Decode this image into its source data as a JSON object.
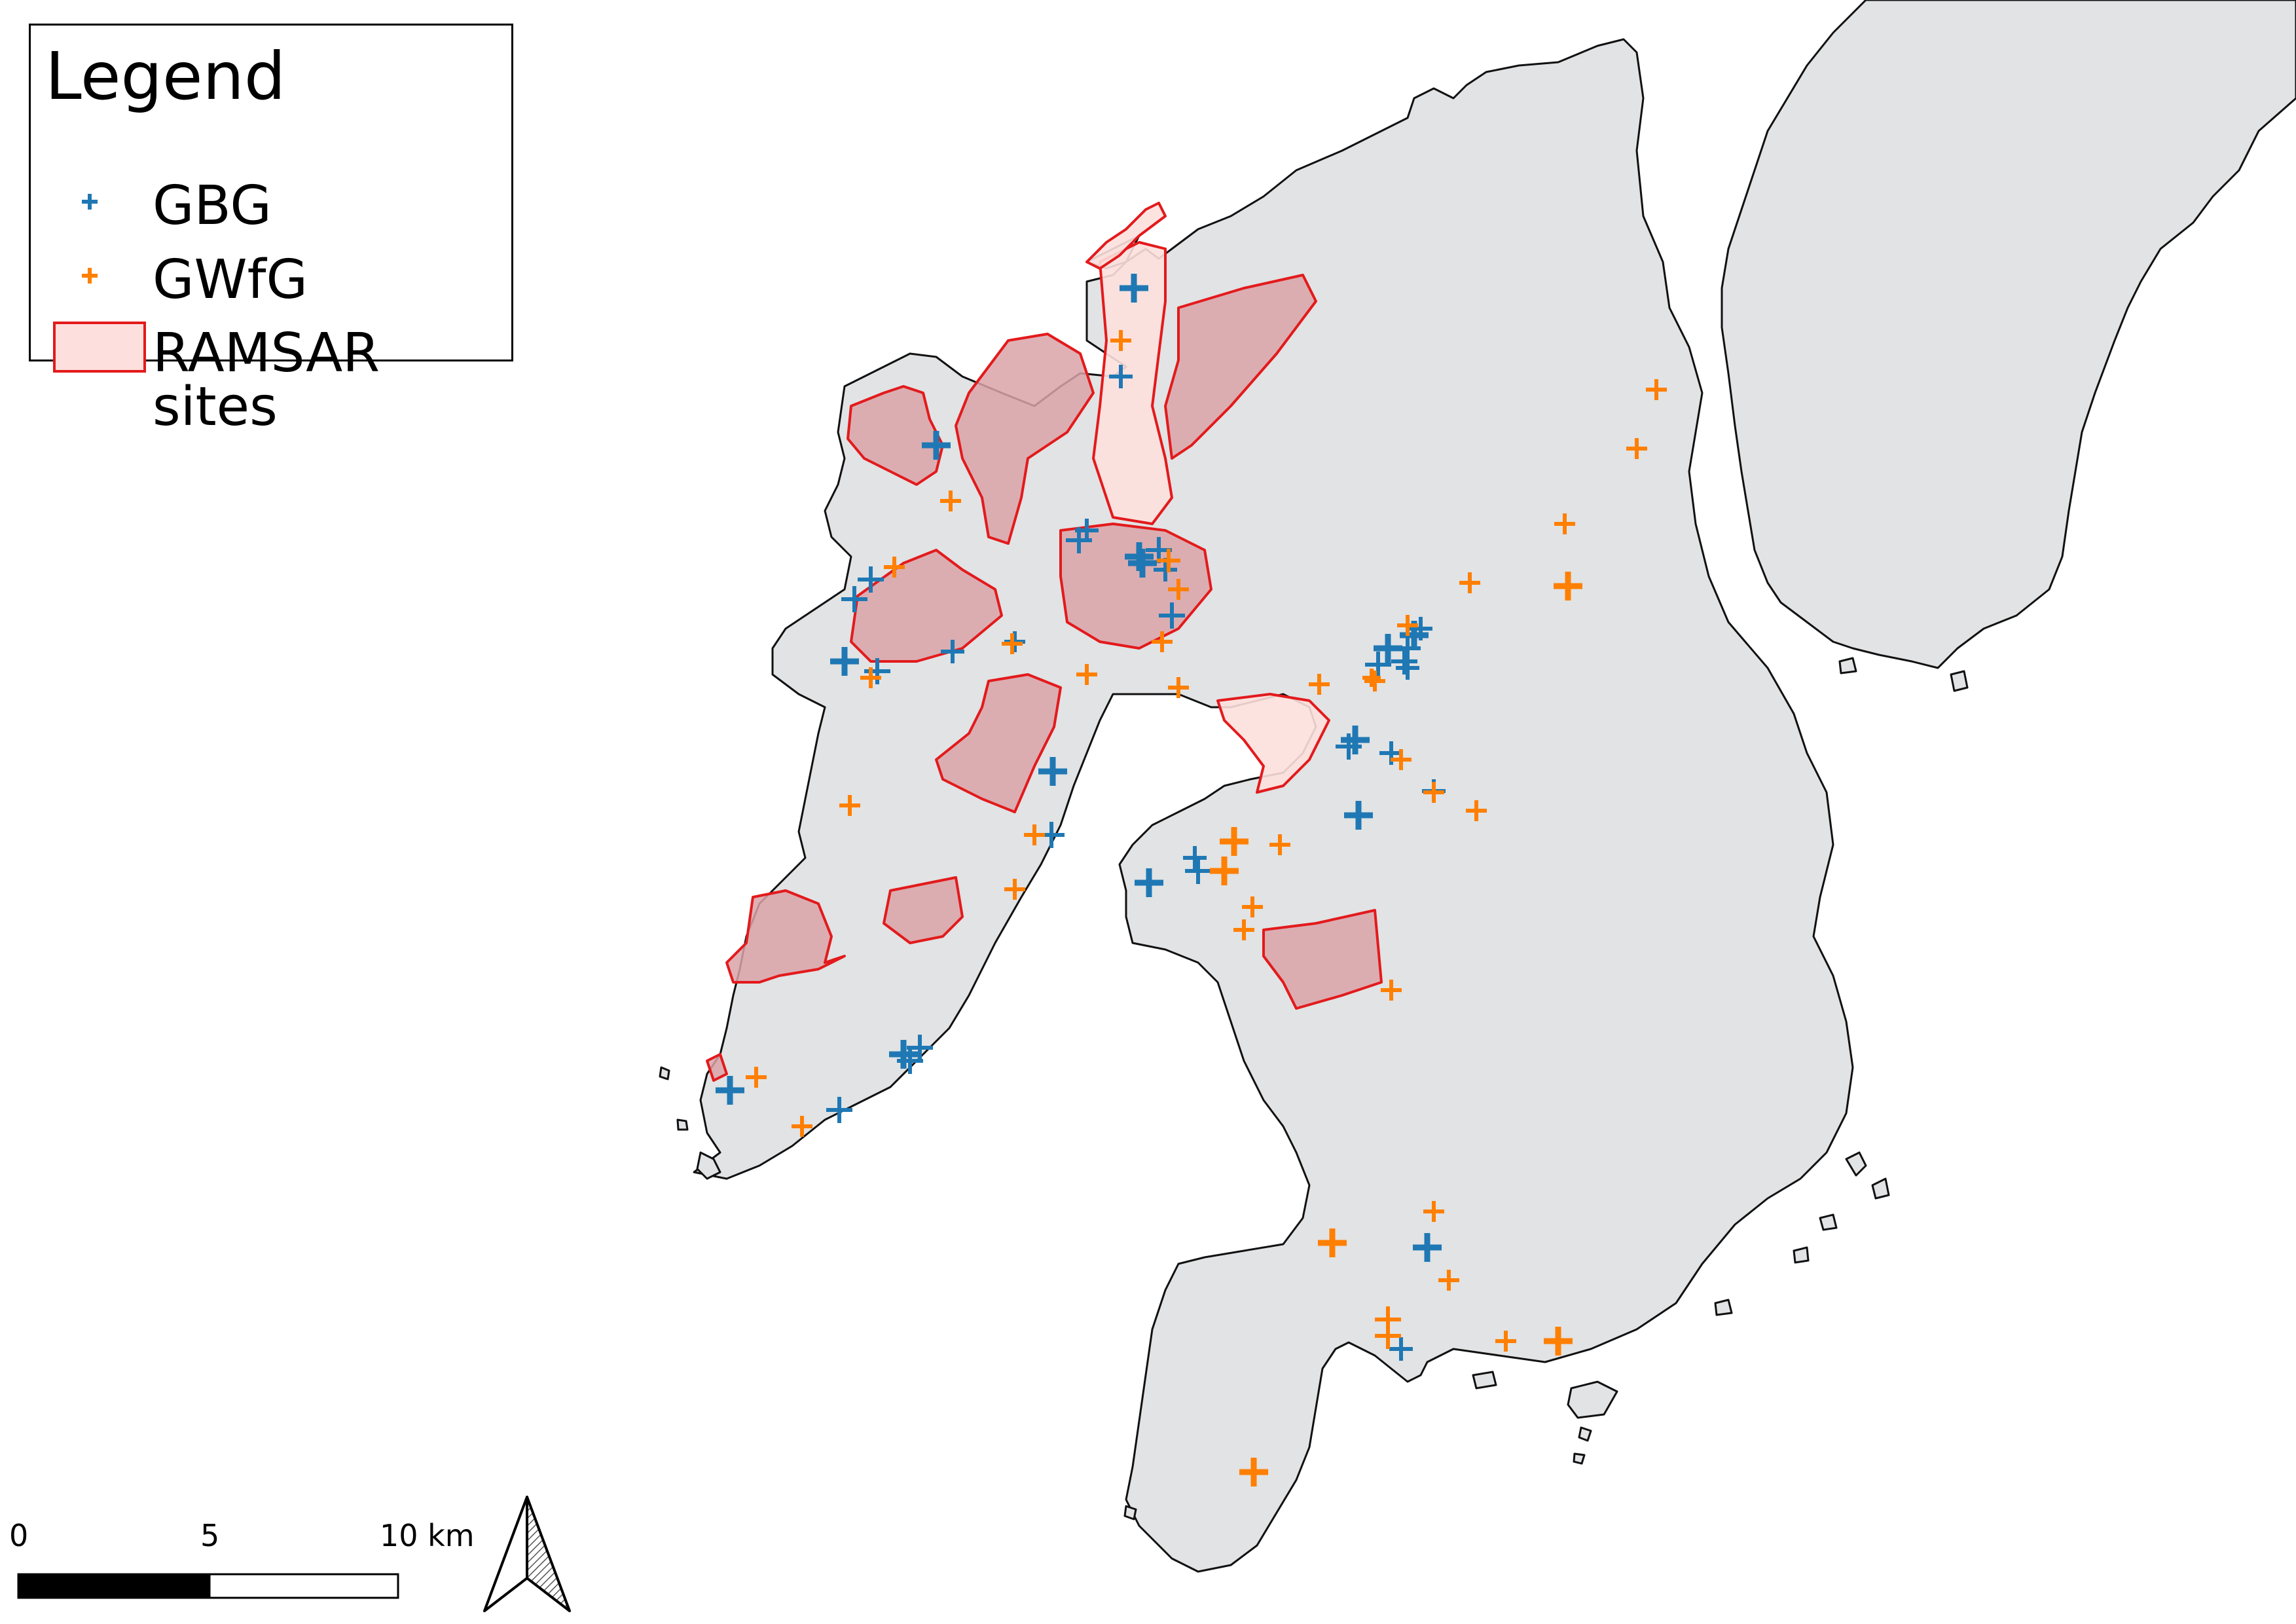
{
  "legend": {
    "title": "Legend",
    "items": [
      {
        "label": "GBG",
        "symbol": "plus",
        "color": "#1f78b4"
      },
      {
        "label": "GWfG",
        "symbol": "plus",
        "color": "#ff7f00"
      },
      {
        "label": "RAMSAR sites",
        "symbol": "polygon",
        "fill": "#fde0dd",
        "stroke": "#e31a1c"
      }
    ]
  },
  "scale_bar": {
    "labels": [
      "0",
      "5",
      "10 km"
    ]
  },
  "north_arrow": {
    "icon": "north-arrow-icon"
  },
  "colors": {
    "land": "#e1e3e4",
    "water": "#ffffff",
    "gbg": "#1f78b4",
    "gwfg": "#ff7f00",
    "ramsar_stroke": "#e31a1c",
    "ramsar_fill": "#d9a3a8",
    "ramsar_fill_light": "#fde0dd"
  }
}
